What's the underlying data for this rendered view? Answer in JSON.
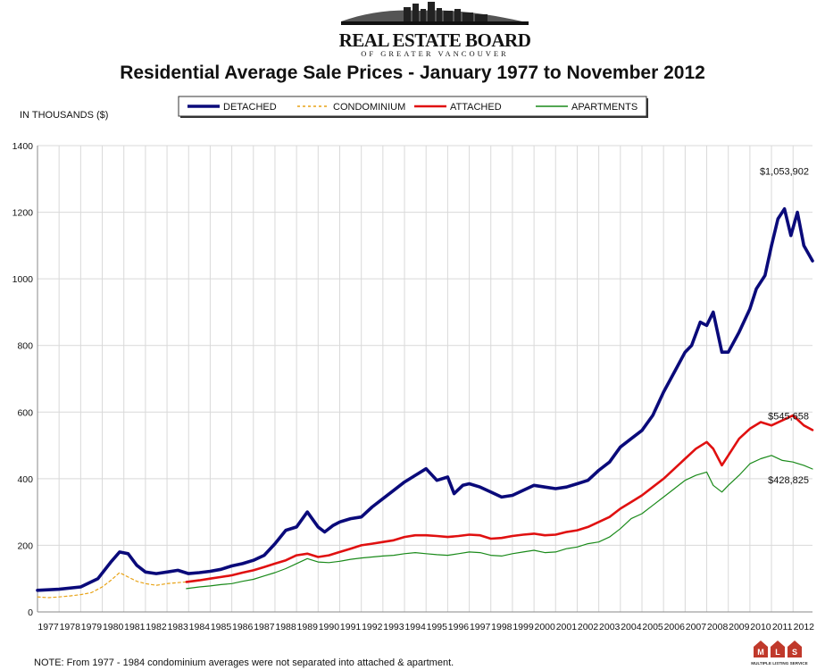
{
  "header": {
    "org_name": "REAL ESTATE BOARD",
    "org_subtitle": "OF GREATER VANCOUVER"
  },
  "footer": {
    "note": "NOTE:  From 1977 - 1984 condominium averages were not separated into attached & apartment.",
    "mls_caption": "MULTIPLE LISTING SERVICE"
  },
  "colors": {
    "detached": "#0a0a7a",
    "condominium": "#e8a317",
    "attached": "#e01010",
    "apartments": "#1a8a1a",
    "grid": "#d9d9d9"
  },
  "chart_data": {
    "type": "line",
    "title": "Residential Average Sale Prices  -  January 1977 to November 2012",
    "ylabel": "IN THOUSANDS ($)",
    "xlabel": "",
    "ylim": [
      0,
      1400
    ],
    "yticks": [
      0,
      200,
      400,
      600,
      800,
      1000,
      1200,
      1400
    ],
    "xlim": [
      1977.0,
      2012.9
    ],
    "xtick_labels": [
      "1977",
      "1978",
      "1979",
      "1980",
      "1981",
      "1982",
      "1983",
      "1984",
      "1985",
      "1986",
      "1987",
      "1988",
      "1989",
      "1990",
      "1991",
      "1992",
      "1993",
      "1994",
      "1995",
      "1996",
      "1997",
      "1998",
      "1999",
      "2000",
      "2001",
      "2002",
      "2003",
      "2004",
      "2005",
      "2006",
      "2007",
      "2008",
      "2009",
      "2010",
      "2011",
      "2012"
    ],
    "grid": true,
    "legend_position": "top",
    "series": [
      {
        "name": "DETACHED",
        "x": [
          1977.0,
          1978.0,
          1979.0,
          1979.8,
          1980.4,
          1980.8,
          1981.2,
          1981.6,
          1982.0,
          1982.5,
          1983.0,
          1983.5,
          1984.0,
          1984.5,
          1985.0,
          1985.5,
          1986.0,
          1986.5,
          1987.0,
          1987.5,
          1988.0,
          1988.5,
          1989.0,
          1989.5,
          1990.0,
          1990.3,
          1990.7,
          1991.0,
          1991.5,
          1992.0,
          1992.5,
          1993.0,
          1993.5,
          1994.0,
          1994.5,
          1995.0,
          1995.5,
          1996.0,
          1996.3,
          1996.7,
          1997.0,
          1997.5,
          1998.0,
          1998.5,
          1999.0,
          1999.5,
          2000.0,
          2000.5,
          2001.0,
          2001.5,
          2002.0,
          2002.5,
          2003.0,
          2003.5,
          2004.0,
          2004.5,
          2005.0,
          2005.5,
          2006.0,
          2006.5,
          2007.0,
          2007.3,
          2007.7,
          2008.0,
          2008.3,
          2008.7,
          2009.0,
          2009.5,
          2010.0,
          2010.3,
          2010.7,
          2011.0,
          2011.3,
          2011.6,
          2011.9,
          2012.2,
          2012.5,
          2012.9
        ],
        "values": [
          65,
          68,
          75,
          100,
          150,
          180,
          175,
          140,
          120,
          115,
          120,
          125,
          115,
          118,
          122,
          128,
          138,
          145,
          155,
          170,
          205,
          245,
          255,
          300,
          255,
          240,
          260,
          270,
          280,
          285,
          315,
          340,
          365,
          390,
          410,
          430,
          395,
          405,
          355,
          380,
          385,
          375,
          360,
          345,
          350,
          365,
          380,
          375,
          370,
          375,
          385,
          395,
          425,
          450,
          495,
          520,
          545,
          590,
          660,
          720,
          780,
          800,
          870,
          860,
          900,
          780,
          780,
          840,
          910,
          970,
          1010,
          1100,
          1180,
          1210,
          1130,
          1200,
          1100,
          1054
        ],
        "annotation": "$1,053,902"
      },
      {
        "name": "CONDOMINIUM",
        "x": [
          1977.0,
          1977.5,
          1978.0,
          1978.5,
          1979.0,
          1979.5,
          1980.0,
          1980.4,
          1980.8,
          1981.2,
          1981.6,
          1982.0,
          1982.5,
          1983.0,
          1983.5,
          1983.9
        ],
        "values": [
          45,
          43,
          45,
          48,
          52,
          58,
          75,
          95,
          118,
          105,
          92,
          85,
          80,
          85,
          88,
          90
        ]
      },
      {
        "name": "ATTACHED",
        "x": [
          1983.9,
          1984.5,
          1985.0,
          1985.5,
          1986.0,
          1986.5,
          1987.0,
          1987.5,
          1988.0,
          1988.5,
          1989.0,
          1989.5,
          1990.0,
          1990.5,
          1991.0,
          1991.5,
          1992.0,
          1992.5,
          1993.0,
          1993.5,
          1994.0,
          1994.5,
          1995.0,
          1995.5,
          1996.0,
          1996.5,
          1997.0,
          1997.5,
          1998.0,
          1998.5,
          1999.0,
          1999.5,
          2000.0,
          2000.5,
          2001.0,
          2001.5,
          2002.0,
          2002.5,
          2003.0,
          2003.5,
          2004.0,
          2004.5,
          2005.0,
          2005.5,
          2006.0,
          2006.5,
          2007.0,
          2007.5,
          2008.0,
          2008.3,
          2008.7,
          2009.0,
          2009.5,
          2010.0,
          2010.5,
          2011.0,
          2011.5,
          2012.0,
          2012.5,
          2012.9
        ],
        "values": [
          90,
          95,
          100,
          105,
          110,
          118,
          125,
          135,
          145,
          155,
          170,
          175,
          165,
          170,
          180,
          190,
          200,
          205,
          210,
          215,
          225,
          230,
          230,
          228,
          225,
          228,
          232,
          230,
          220,
          222,
          228,
          232,
          235,
          230,
          232,
          240,
          245,
          255,
          270,
          285,
          310,
          330,
          350,
          375,
          400,
          430,
          460,
          490,
          510,
          490,
          440,
          470,
          520,
          550,
          570,
          560,
          575,
          590,
          560,
          546
        ],
        "annotation": "$545,658"
      },
      {
        "name": "APARTMENTS",
        "x": [
          1983.9,
          1984.5,
          1985.0,
          1985.5,
          1986.0,
          1986.5,
          1987.0,
          1987.5,
          1988.0,
          1988.5,
          1989.0,
          1989.5,
          1990.0,
          1990.5,
          1991.0,
          1991.5,
          1992.0,
          1992.5,
          1993.0,
          1993.5,
          1994.0,
          1994.5,
          1995.0,
          1995.5,
          1996.0,
          1996.5,
          1997.0,
          1997.5,
          1998.0,
          1998.5,
          1999.0,
          1999.5,
          2000.0,
          2000.5,
          2001.0,
          2001.5,
          2002.0,
          2002.5,
          2003.0,
          2003.5,
          2004.0,
          2004.5,
          2005.0,
          2005.5,
          2006.0,
          2006.5,
          2007.0,
          2007.5,
          2008.0,
          2008.3,
          2008.7,
          2009.0,
          2009.5,
          2010.0,
          2010.5,
          2011.0,
          2011.5,
          2012.0,
          2012.5,
          2012.9
        ],
        "values": [
          70,
          75,
          78,
          82,
          85,
          92,
          98,
          108,
          118,
          130,
          145,
          160,
          150,
          148,
          152,
          158,
          162,
          165,
          168,
          170,
          175,
          178,
          175,
          172,
          170,
          175,
          180,
          178,
          170,
          168,
          175,
          180,
          185,
          178,
          180,
          190,
          195,
          205,
          210,
          225,
          250,
          280,
          295,
          320,
          345,
          370,
          395,
          410,
          420,
          380,
          360,
          380,
          410,
          445,
          460,
          470,
          455,
          450,
          440,
          429
        ],
        "annotation": "$428,825"
      }
    ]
  }
}
